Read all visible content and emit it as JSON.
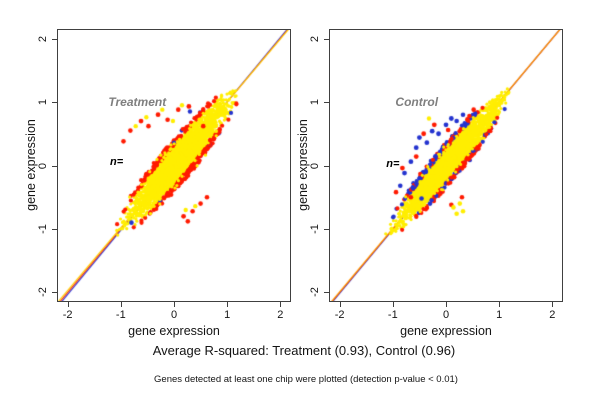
{
  "background": "#ffffff",
  "captions": {
    "r_squared": "Average R-squared: Treatment (0.93), Control (0.96)",
    "footnote": "Genes detected at least one chip were plotted (detection p-value < 0.01)"
  },
  "chart_data": [
    {
      "type": "scatter",
      "panel_label": "Treatment",
      "panel_label_pos": [
        -0.69,
        1.0
      ],
      "annotation": "n=",
      "annotation_pos": [
        -1.08,
        0.05
      ],
      "xlabel": "gene expression",
      "ylabel": "gene expression",
      "xlim": [
        -2.2,
        2.2
      ],
      "ylim": [
        -2.15,
        2.15
      ],
      "xticks": [
        -2,
        -1,
        0,
        1,
        2
      ],
      "yticks": [
        -2,
        -1,
        0,
        1,
        2
      ],
      "r_squared": 0.93,
      "grid": false,
      "point_colors": {
        "bulk": "#ffee00",
        "edge": "#ff1a00",
        "accent": "#2433cf"
      },
      "cloud": {
        "t_min": -1.12,
        "t_max": 1.3,
        "half_width": 0.32,
        "n_points": 3200,
        "overlay_points": 260,
        "seed": 7,
        "accent_ratio_upper": 0.03,
        "accent_ratio_lower": 0.05
      },
      "identity_lines": [
        {
          "color": "#2a35d8",
          "slope": 1.012,
          "intercept": -0.008
        },
        {
          "color": "#ff3300",
          "slope": 1.0,
          "intercept": 0.0
        },
        {
          "color": "#ffd400",
          "slope": 0.99,
          "intercept": 0.012
        }
      ],
      "outliers": [
        [
          -0.95,
          0.38,
          "edge",
          2.3
        ],
        [
          -0.82,
          0.55,
          "edge",
          2.3
        ],
        [
          -0.62,
          0.7,
          "edge",
          2.4
        ],
        [
          -0.48,
          0.62,
          "edge",
          2.3
        ],
        [
          -0.3,
          0.8,
          "edge",
          2.4
        ],
        [
          -0.12,
          0.72,
          "edge",
          2.3
        ],
        [
          0.08,
          0.88,
          "edge",
          2.3
        ],
        [
          0.28,
          0.93,
          "edge",
          2.4
        ],
        [
          0.55,
          0.62,
          "edge",
          2.3
        ],
        [
          0.68,
          0.4,
          "edge",
          2.3
        ],
        [
          0.18,
          -0.8,
          "edge",
          2.4
        ],
        [
          0.35,
          -0.72,
          "edge",
          2.3
        ],
        [
          0.5,
          -0.6,
          "edge",
          2.3
        ],
        [
          0.26,
          -0.88,
          "edge",
          2.3
        ],
        [
          0.62,
          -0.5,
          "edge",
          2.3
        ],
        [
          -0.72,
          0.62,
          "bulk",
          2.2
        ],
        [
          -0.52,
          0.76,
          "bulk",
          2.2
        ],
        [
          -0.22,
          0.88,
          "bulk",
          2.2
        ],
        [
          -0.02,
          0.7,
          "bulk",
          2.2
        ],
        [
          0.15,
          0.95,
          "bulk",
          2.2
        ],
        [
          0.4,
          -0.64,
          "bulk",
          2.2
        ],
        [
          0.22,
          -0.7,
          "bulk",
          2.2
        ],
        [
          0.48,
          0.72,
          "bulk",
          2.2
        ],
        [
          -0.8,
          -0.9,
          "accent",
          2.3
        ],
        [
          0.3,
          0.85,
          "accent",
          2.2
        ]
      ]
    },
    {
      "type": "scatter",
      "panel_label": "Control",
      "panel_label_pos": [
        -0.55,
        1.0
      ],
      "annotation": "n=",
      "annotation_pos": [
        -1.0,
        0.02
      ],
      "xlabel": "gene expression",
      "ylabel": "gene expression",
      "xlim": [
        -2.2,
        2.2
      ],
      "ylim": [
        -2.15,
        2.15
      ],
      "xticks": [
        -2,
        -1,
        0,
        1,
        2
      ],
      "yticks": [
        -2,
        -1,
        0,
        1,
        2
      ],
      "r_squared": 0.96,
      "grid": false,
      "point_colors": {
        "bulk": "#ffee00",
        "edge": "#ff1a00",
        "accent": "#2433cf"
      },
      "cloud": {
        "t_min": -1.17,
        "t_max": 1.27,
        "half_width": 0.27,
        "n_points": 3200,
        "overlay_points": 260,
        "seed": 23,
        "accent_ratio_upper": 0.5,
        "accent_ratio_lower": 0.25
      },
      "identity_lines": [
        {
          "color": "#2a35d8",
          "slope": 1.004,
          "intercept": -0.006
        },
        {
          "color": "#ff3300",
          "slope": 1.0,
          "intercept": 0.0
        },
        {
          "color": "#ffa000",
          "slope": 0.998,
          "intercept": 0.006
        }
      ],
      "outliers": [
        [
          -0.78,
          -0.12,
          "accent",
          2.4
        ],
        [
          -0.66,
          0.06,
          "accent",
          2.4
        ],
        [
          -0.56,
          0.28,
          "accent",
          2.4
        ],
        [
          -0.5,
          0.44,
          "accent",
          2.4
        ],
        [
          -0.36,
          0.36,
          "accent",
          2.4
        ],
        [
          -0.26,
          0.54,
          "accent",
          2.4
        ],
        [
          -0.14,
          0.5,
          "accent",
          2.4
        ],
        [
          0.0,
          0.64,
          "accent",
          2.4
        ],
        [
          0.1,
          0.74,
          "accent",
          2.4
        ],
        [
          0.2,
          0.7,
          "accent",
          2.3
        ],
        [
          -0.62,
          -0.36,
          "accent",
          2.3
        ],
        [
          -0.46,
          -0.52,
          "accent",
          2.3
        ],
        [
          -0.86,
          -0.32,
          "accent",
          2.3
        ],
        [
          0.32,
          0.8,
          "accent",
          2.3
        ],
        [
          -0.3,
          -0.6,
          "accent",
          2.3
        ],
        [
          -0.82,
          -0.04,
          "edge",
          2.4
        ],
        [
          -0.56,
          0.14,
          "edge",
          2.4
        ],
        [
          -0.42,
          0.5,
          "edge",
          2.4
        ],
        [
          -0.22,
          0.64,
          "edge",
          2.4
        ],
        [
          0.04,
          0.56,
          "edge",
          2.3
        ],
        [
          -0.66,
          -0.5,
          "edge",
          2.3
        ],
        [
          0.3,
          -0.5,
          "edge",
          2.3
        ],
        [
          0.1,
          -0.62,
          "edge",
          2.3
        ],
        [
          0.52,
          0.88,
          "edge",
          2.3
        ],
        [
          0.44,
          0.78,
          "edge",
          2.3
        ],
        [
          -0.94,
          -0.42,
          "edge",
          2.3
        ],
        [
          0.14,
          -0.66,
          "bulk",
          2.3
        ],
        [
          0.26,
          -0.6,
          "bulk",
          2.3
        ],
        [
          0.32,
          -0.72,
          "bulk",
          2.3
        ],
        [
          -0.32,
          0.74,
          "bulk",
          2.2
        ],
        [
          0.2,
          -0.76,
          "bulk",
          2.3
        ]
      ]
    }
  ]
}
